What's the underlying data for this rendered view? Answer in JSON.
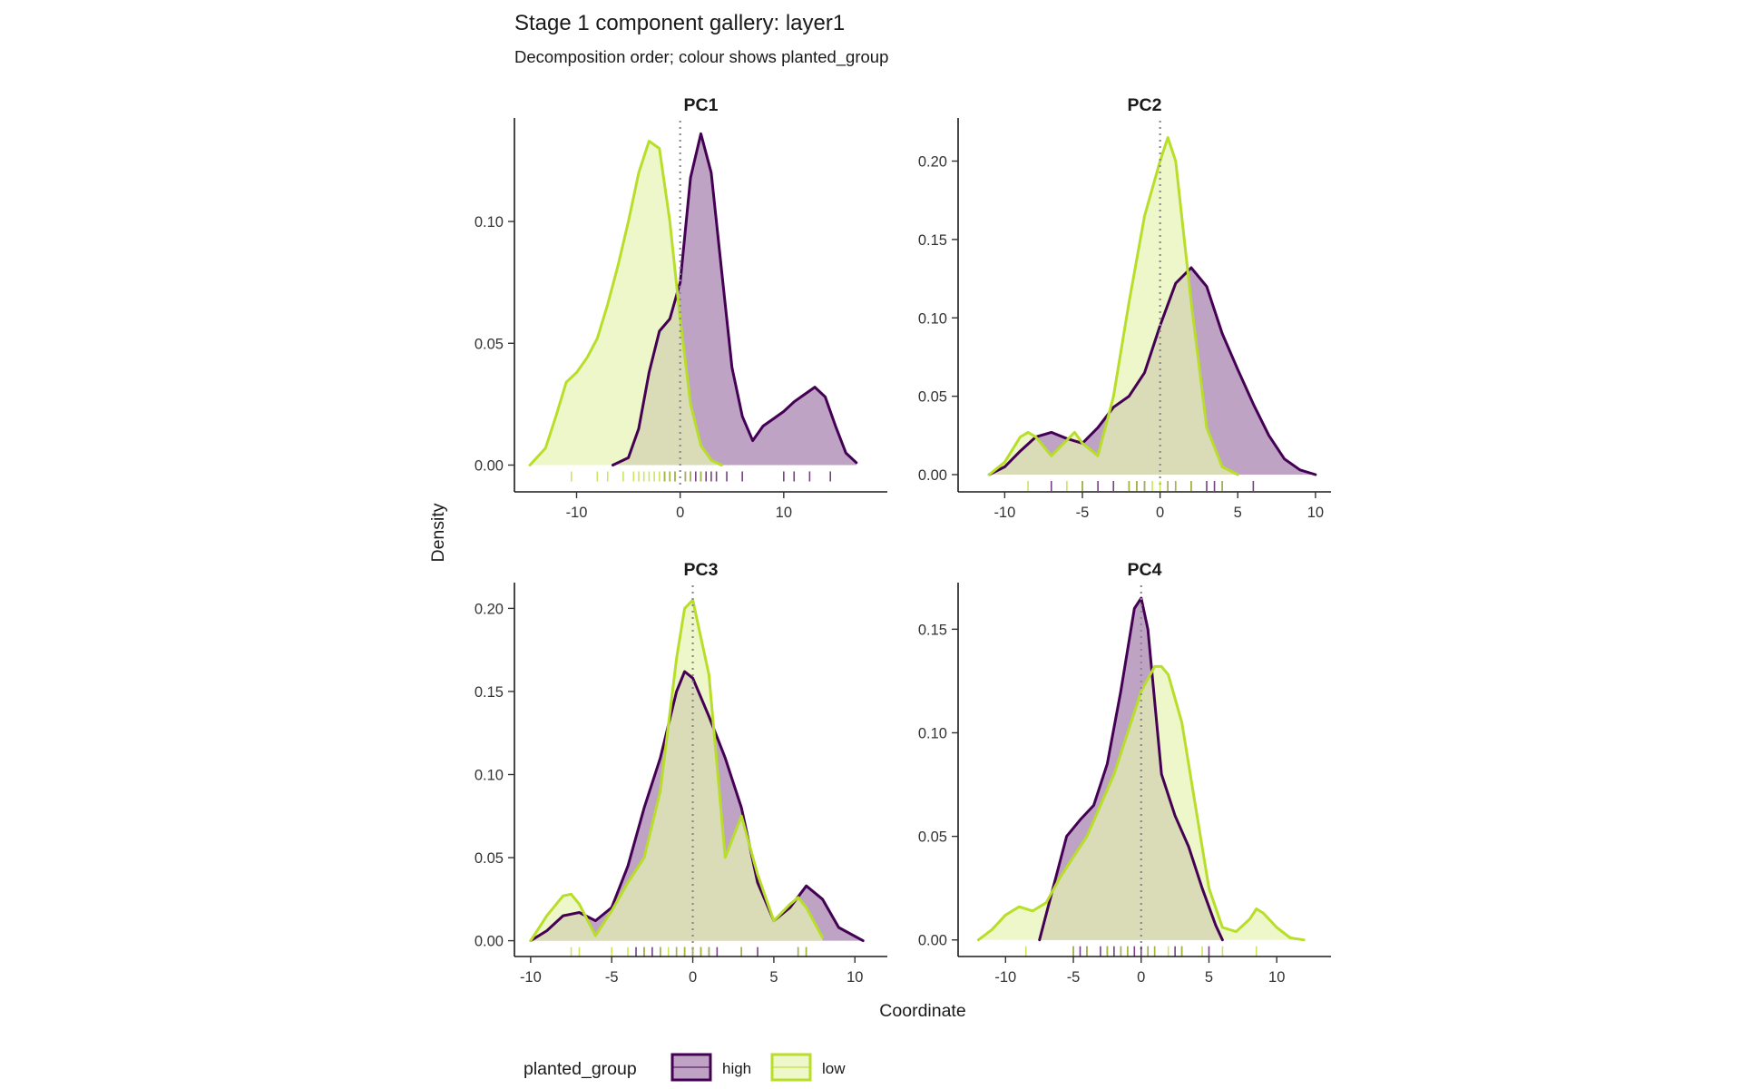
{
  "chart_data": {
    "type": "area",
    "title": "Stage 1 component gallery: layer1",
    "subtitle": "Decomposition order; colour shows planted_group",
    "xlabel": "Coordinate",
    "ylabel": "Density",
    "legend": {
      "title": "planted_group",
      "position": "bottom",
      "entries": [
        {
          "name": "high",
          "line": "#440154",
          "fill": "#B89BC0"
        },
        {
          "name": "low",
          "line": "#B8DE29",
          "fill": "#E5F3B2"
        }
      ]
    },
    "reference_line_x": 0,
    "grid": false,
    "panels": [
      {
        "label": "PC1",
        "xlim": [
          -16,
          20
        ],
        "ylim": [
          -0.011,
          0.1425
        ],
        "xticks": [
          -10,
          0,
          10
        ],
        "yticks": [
          0.0,
          0.05,
          0.1
        ],
        "ytick_labels": [
          "0.00",
          "0.05",
          "0.10"
        ],
        "series": [
          {
            "name": "high",
            "x": [
              -6.5,
              -5,
              -4,
              -3,
              -2,
              -1,
              0,
              1,
              2,
              3,
              4,
              5,
              6,
              7,
              8,
              9,
              10,
              11,
              12,
              13,
              14,
              15,
              16,
              17
            ],
            "y": [
              0.0,
              0.003,
              0.015,
              0.038,
              0.055,
              0.06,
              0.075,
              0.118,
              0.136,
              0.12,
              0.08,
              0.04,
              0.02,
              0.01,
              0.016,
              0.019,
              0.022,
              0.026,
              0.029,
              0.032,
              0.028,
              0.016,
              0.005,
              0.001
            ],
            "rug": [
              -1.5,
              -1,
              -0.5,
              0.5,
              1,
              1.5,
              2,
              2.5,
              3,
              3.5,
              4.5,
              6,
              10,
              11,
              12.5,
              14.5
            ]
          },
          {
            "name": "low",
            "x": [
              -14.5,
              -13,
              -12,
              -11,
              -10,
              -9,
              -8,
              -7,
              -6,
              -5,
              -4,
              -3,
              -2,
              -1,
              0,
              1,
              2,
              3,
              4
            ],
            "y": [
              0.0,
              0.007,
              0.02,
              0.034,
              0.038,
              0.044,
              0.052,
              0.066,
              0.082,
              0.1,
              0.12,
              0.133,
              0.13,
              0.1,
              0.06,
              0.025,
              0.008,
              0.002,
              0.0
            ],
            "rug": [
              -10.5,
              -8,
              -7,
              -5.5,
              -4.5,
              -4,
              -3.5,
              -3,
              -2.5,
              -2,
              -1.5,
              -1,
              -0.5,
              0.5,
              1,
              2
            ]
          }
        ]
      },
      {
        "label": "PC2",
        "xlim": [
          -13,
          11
        ],
        "ylim": [
          -0.011,
          0.2275
        ],
        "xticks": [
          -10,
          -5,
          0,
          5,
          10
        ],
        "yticks": [
          0.0,
          0.05,
          0.1,
          0.15,
          0.2
        ],
        "ytick_labels": [
          "0.00",
          "0.05",
          "0.10",
          "0.15",
          "0.20"
        ],
        "series": [
          {
            "name": "high",
            "x": [
              -11,
              -10,
              -9,
              -8,
              -7,
              -6,
              -5,
              -4,
              -3,
              -2,
              -1,
              0,
              1,
              2,
              3,
              4,
              5,
              6,
              7,
              8,
              9,
              10
            ],
            "y": [
              0.0,
              0.005,
              0.015,
              0.024,
              0.027,
              0.023,
              0.02,
              0.03,
              0.043,
              0.05,
              0.065,
              0.095,
              0.122,
              0.132,
              0.12,
              0.09,
              0.067,
              0.045,
              0.025,
              0.01,
              0.003,
              0.0
            ],
            "rug": [
              -7,
              -5,
              -4,
              -3,
              -2,
              -1.5,
              -1,
              0.5,
              1,
              2,
              3,
              3.5,
              4,
              6
            ]
          },
          {
            "name": "low",
            "x": [
              -11,
              -10,
              -9,
              -8.5,
              -8,
              -7,
              -6,
              -5.5,
              -5,
              -4,
              -3,
              -2,
              -1,
              0,
              0.5,
              1,
              2,
              3,
              4,
              5
            ],
            "y": [
              0.0,
              0.008,
              0.024,
              0.027,
              0.024,
              0.012,
              0.022,
              0.027,
              0.02,
              0.012,
              0.05,
              0.11,
              0.165,
              0.2,
              0.215,
              0.2,
              0.11,
              0.03,
              0.005,
              0.0
            ],
            "rug": [
              -8.5,
              -6,
              -5,
              -2,
              -1.5,
              -1,
              -0.5,
              0,
              0.5,
              1,
              2,
              4
            ]
          }
        ]
      },
      {
        "label": "PC3",
        "xlim": [
          -11,
          12
        ],
        "ylim": [
          -0.0095,
          0.2155
        ],
        "xticks": [
          -10,
          -5,
          0,
          5,
          10
        ],
        "yticks": [
          0.0,
          0.05,
          0.1,
          0.15,
          0.2
        ],
        "ytick_labels": [
          "0.00",
          "0.05",
          "0.10",
          "0.15",
          "0.20"
        ],
        "series": [
          {
            "name": "high",
            "x": [
              -10,
              -9,
              -8,
              -7,
              -6,
              -5,
              -4,
              -3,
              -2,
              -1,
              -0.5,
              0,
              1,
              2,
              3,
              4,
              5,
              6,
              7,
              8,
              9,
              10.5
            ],
            "y": [
              0.0,
              0.006,
              0.015,
              0.017,
              0.012,
              0.02,
              0.045,
              0.08,
              0.11,
              0.15,
              0.162,
              0.158,
              0.135,
              0.11,
              0.08,
              0.035,
              0.012,
              0.02,
              0.033,
              0.025,
              0.008,
              0.0
            ],
            "rug": [
              -3.5,
              -3,
              -2.5,
              -2,
              -1,
              -0.5,
              0,
              0.5,
              1,
              1.5,
              3,
              4,
              6.5,
              7
            ]
          },
          {
            "name": "low",
            "x": [
              -10,
              -9,
              -8,
              -7.5,
              -7,
              -6,
              -5,
              -4,
              -3,
              -2,
              -1,
              -0.5,
              0,
              1,
              2,
              3,
              4,
              5,
              6,
              6.5,
              7,
              8
            ],
            "y": [
              0.0,
              0.015,
              0.027,
              0.028,
              0.022,
              0.003,
              0.018,
              0.035,
              0.05,
              0.09,
              0.17,
              0.2,
              0.205,
              0.16,
              0.05,
              0.075,
              0.04,
              0.012,
              0.022,
              0.026,
              0.02,
              0.002
            ],
            "rug": [
              -7.5,
              -7,
              -5,
              -4,
              -3,
              -2,
              -1.5,
              -1,
              -0.5,
              0,
              0.5,
              1,
              3,
              6.5,
              7
            ]
          }
        ]
      },
      {
        "label": "PC4",
        "xlim": [
          -13.5,
          14
        ],
        "ylim": [
          -0.008,
          0.1725
        ],
        "xticks": [
          -10,
          -5,
          0,
          5,
          10
        ],
        "yticks": [
          0.0,
          0.05,
          0.1,
          0.15
        ],
        "ytick_labels": [
          "0.00",
          "0.05",
          "0.10",
          "0.15"
        ],
        "series": [
          {
            "name": "high",
            "x": [
              -7.5,
              -6.5,
              -5.5,
              -4.5,
              -3.5,
              -2.5,
              -1.5,
              -0.5,
              0,
              0.5,
              1.5,
              2.5,
              3.5,
              4.5,
              5.5,
              6
            ],
            "y": [
              0.0,
              0.025,
              0.05,
              0.058,
              0.065,
              0.085,
              0.12,
              0.16,
              0.165,
              0.15,
              0.08,
              0.06,
              0.045,
              0.025,
              0.007,
              0.0
            ],
            "rug": [
              -5,
              -4.5,
              -4,
              -3,
              -2.5,
              -2,
              -1.5,
              -1,
              -0.5,
              0,
              0.5,
              1,
              2.5,
              3,
              5
            ]
          },
          {
            "name": "low",
            "x": [
              -12,
              -11,
              -10,
              -9,
              -8,
              -7,
              -6,
              -5,
              -4,
              -3,
              -2,
              -1,
              0,
              1,
              1.5,
              2,
              3,
              4,
              5,
              6,
              7,
              8,
              8.5,
              9,
              10,
              11,
              12
            ],
            "y": [
              0.0,
              0.005,
              0.012,
              0.016,
              0.014,
              0.018,
              0.03,
              0.04,
              0.05,
              0.065,
              0.08,
              0.1,
              0.12,
              0.132,
              0.132,
              0.128,
              0.105,
              0.065,
              0.025,
              0.006,
              0.004,
              0.01,
              0.015,
              0.013,
              0.006,
              0.001,
              0.0
            ],
            "rug": [
              -8.5,
              -5,
              -4,
              -2.5,
              -1.5,
              -1,
              0.5,
              1,
              2,
              3,
              4.5,
              6,
              8.5
            ]
          }
        ]
      }
    ]
  }
}
